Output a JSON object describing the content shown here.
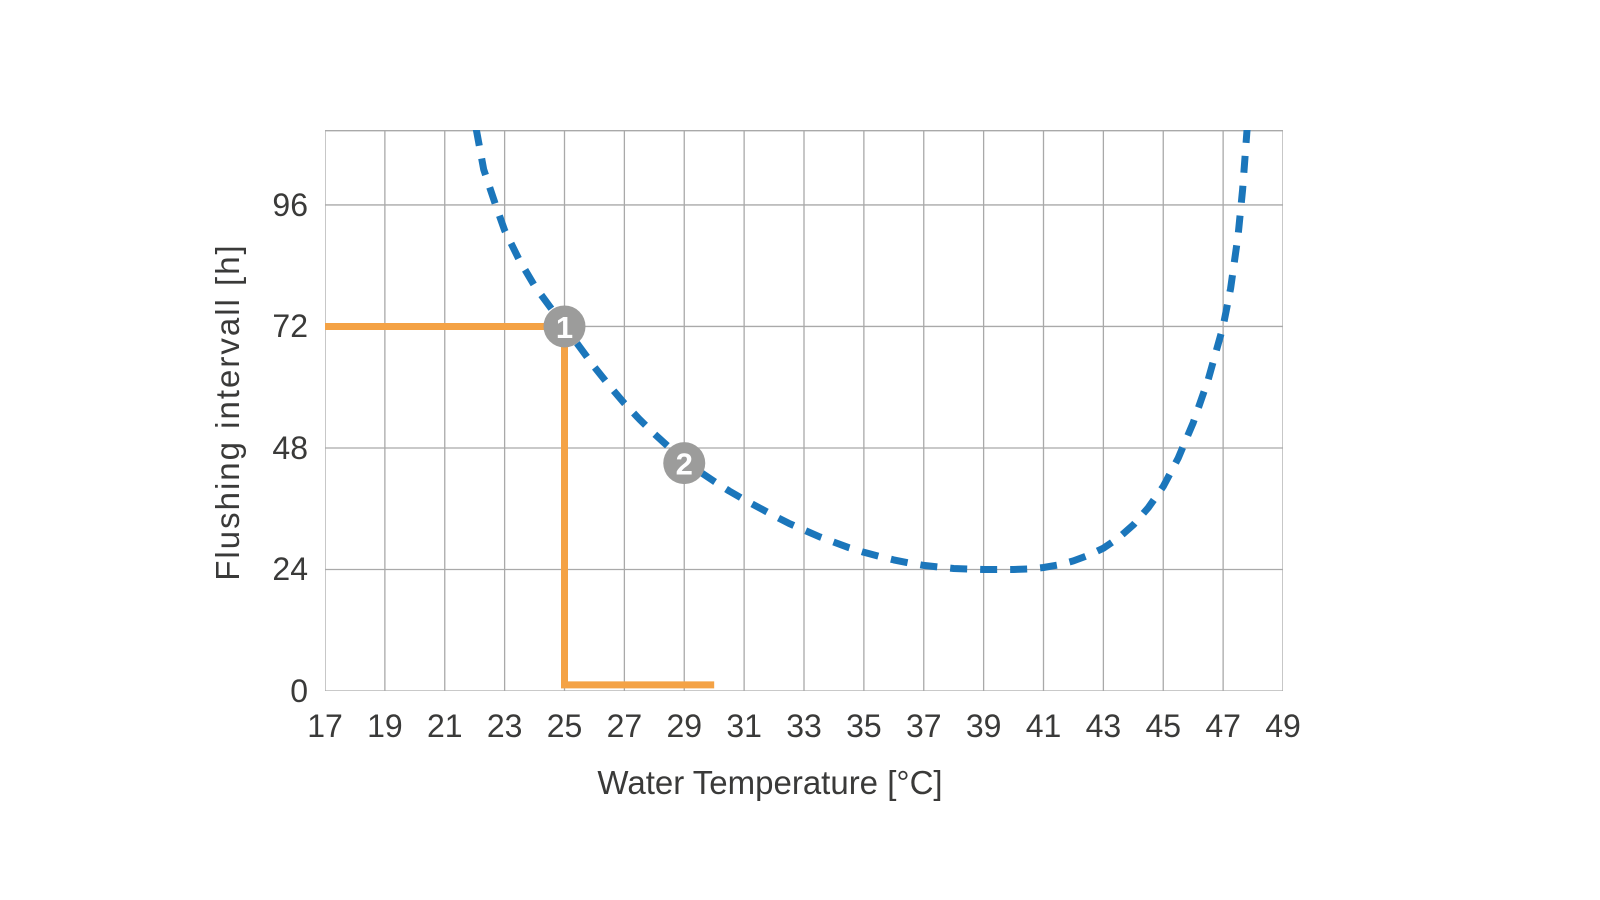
{
  "chart_data": {
    "type": "line",
    "title": "",
    "xlabel": "Water Temperature [°C]",
    "ylabel": "Flushing intervall [h]",
    "xlim": [
      17,
      49
    ],
    "ylim": [
      0,
      110.8
    ],
    "x_ticks": [
      17,
      19,
      21,
      23,
      25,
      27,
      29,
      31,
      33,
      35,
      37,
      39,
      41,
      43,
      45,
      47,
      49
    ],
    "y_ticks": [
      0,
      24,
      48,
      72,
      96
    ],
    "grid": true,
    "legend": "none",
    "series": [
      {
        "name": "flushing-interval-curve",
        "style": "dashed",
        "color": "#1b76bb",
        "points": [
          [
            22.05,
            111
          ],
          [
            22.3,
            103
          ],
          [
            22.7,
            96
          ],
          [
            23,
            91
          ],
          [
            23.5,
            85
          ],
          [
            24,
            80
          ],
          [
            24.5,
            76
          ],
          [
            25,
            72
          ],
          [
            25.5,
            68
          ],
          [
            26,
            64
          ],
          [
            26.5,
            60.3
          ],
          [
            27,
            56.8
          ],
          [
            27.5,
            53.7
          ],
          [
            28,
            50.8
          ],
          [
            28.5,
            48.1
          ],
          [
            29,
            45.6
          ],
          [
            29.5,
            43.4
          ],
          [
            30,
            41.4
          ],
          [
            30.5,
            39.5
          ],
          [
            31,
            37.8
          ],
          [
            31.5,
            36.2
          ],
          [
            32,
            34.6
          ],
          [
            32.5,
            33.1
          ],
          [
            33,
            31.8
          ],
          [
            33.5,
            30.5
          ],
          [
            34,
            29.4
          ],
          [
            34.5,
            28.3
          ],
          [
            35,
            27.4
          ],
          [
            35.5,
            26.6
          ],
          [
            36,
            25.9
          ],
          [
            36.5,
            25.3
          ],
          [
            37,
            24.8
          ],
          [
            37.5,
            24.5
          ],
          [
            38,
            24.2
          ],
          [
            38.5,
            24.1
          ],
          [
            39,
            24
          ],
          [
            39.5,
            24
          ],
          [
            40,
            24
          ],
          [
            40.5,
            24.1
          ],
          [
            41,
            24.4
          ],
          [
            41.5,
            24.9
          ],
          [
            42,
            25.7
          ],
          [
            42.5,
            26.8
          ],
          [
            43,
            28.2
          ],
          [
            43.5,
            30.2
          ],
          [
            44,
            32.8
          ],
          [
            44.5,
            36.2
          ],
          [
            45,
            40.4
          ],
          [
            45.5,
            46
          ],
          [
            46,
            53
          ],
          [
            46.5,
            61.5
          ],
          [
            47,
            72
          ],
          [
            47.25,
            79.5
          ],
          [
            47.5,
            90
          ],
          [
            47.65,
            99
          ],
          [
            47.8,
            111
          ]
        ]
      },
      {
        "name": "guide-line",
        "style": "solid",
        "color": "#f4a245",
        "points": [
          [
            17,
            72
          ],
          [
            25,
            72
          ],
          [
            25,
            1.2
          ],
          [
            30,
            1.2
          ]
        ]
      }
    ],
    "annotations": [
      {
        "label": "1",
        "x": 25,
        "y": 72,
        "fill": "#9c9c9b",
        "text_color": "#ffffff"
      },
      {
        "label": "2",
        "x": 29,
        "y": 45,
        "fill": "#9c9c9b",
        "text_color": "#ffffff"
      }
    ]
  },
  "colors": {
    "background": "#ffffff",
    "grid": "#a9a9a9",
    "tick_text": "#3a3a39",
    "curve_blue": "#1b76bb",
    "guide_orange": "#f4a245",
    "marker_gray": "#9c9c9b"
  }
}
